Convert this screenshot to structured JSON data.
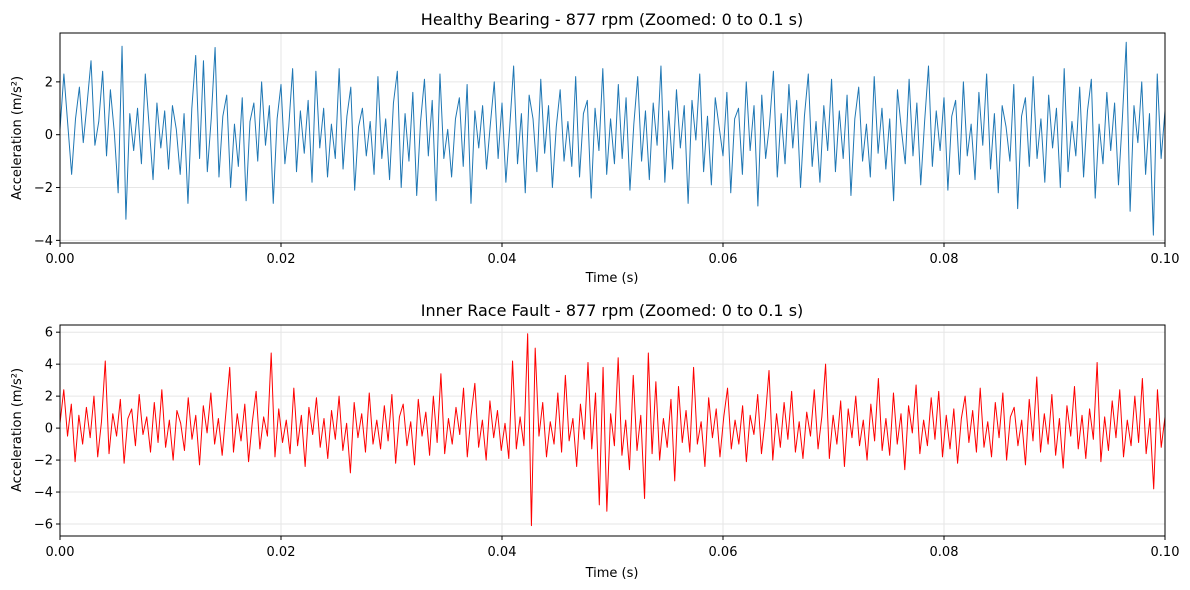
{
  "chart_data": [
    {
      "type": "line",
      "title": "Healthy Bearing - 877 rpm (Zoomed: 0 to 0.1 s)",
      "xlabel": "Time (s)",
      "ylabel": "Acceleration (m/s²)",
      "xlim": [
        0,
        0.1
      ],
      "ylim": [
        -4.1,
        3.85
      ],
      "xticks": [
        0,
        0.02,
        0.04,
        0.06,
        0.08,
        0.1
      ],
      "xtick_labels": [
        "0.00",
        "0.02",
        "0.04",
        "0.06",
        "0.08",
        "0.10"
      ],
      "yticks": [
        -4,
        -2,
        0,
        2
      ],
      "ytick_labels": [
        "−4",
        "−2",
        "0",
        "2"
      ],
      "grid": true,
      "series": [
        {
          "name": "Healthy Bearing",
          "color": "#1f77b4",
          "x_start": 0,
          "x_end": 0.1,
          "sample_count": 1200,
          "values": [
            0.2,
            2.3,
            0.4,
            -1.5,
            0.6,
            1.8,
            -0.3,
            1.2,
            2.8,
            -0.4,
            0.5,
            2.4,
            -0.8,
            1.7,
            0.1,
            -2.2,
            3.35,
            -3.2,
            0.8,
            -0.6,
            1.0,
            -1.1,
            2.3,
            0.3,
            -1.7,
            1.2,
            -0.5,
            0.9,
            -1.3,
            1.1,
            0.2,
            -1.5,
            0.8,
            -2.6,
            1.0,
            3.0,
            -0.9,
            2.8,
            -1.4,
            0.6,
            3.3,
            -1.6,
            0.7,
            1.5,
            -2.0,
            0.4,
            -1.2,
            1.4,
            -2.5,
            0.5,
            1.2,
            -1.0,
            2.0,
            -0.4,
            1.1,
            -2.6,
            0.6,
            1.9,
            -1.1,
            0.3,
            2.5,
            -1.4,
            0.9,
            -0.7,
            1.3,
            -1.8,
            2.4,
            -0.5,
            1.0,
            -1.6,
            0.4,
            -0.9,
            2.5,
            -1.3,
            0.7,
            1.8,
            -2.1,
            0.3,
            1.0,
            -0.8,
            0.5,
            -1.5,
            2.2,
            -0.9,
            0.6,
            -1.7,
            1.2,
            2.4,
            -2.0,
            0.8,
            -1.0,
            1.6,
            -2.3,
            0.5,
            2.1,
            -0.8,
            1.3,
            -2.5,
            2.3,
            -0.9,
            0.2,
            -1.6,
            0.6,
            1.4,
            -1.2,
            1.9,
            -2.6,
            0.9,
            -0.5,
            1.1,
            -1.3,
            0.4,
            2.0,
            -0.9,
            1.2,
            -1.8,
            0.3,
            2.6,
            -1.1,
            0.8,
            -2.2,
            1.5,
            0.6,
            -1.4,
            2.1,
            -0.7,
            1.1,
            -2.0,
            0.3,
            1.7,
            -1.0,
            0.5,
            -1.2,
            2.2,
            -1.6,
            0.8,
            1.3,
            -2.4,
            1.0,
            -0.6,
            2.5,
            -1.5,
            0.6,
            -1.1,
            1.9,
            -0.9,
            1.4,
            -2.1,
            0.4,
            2.2,
            -1.0,
            0.9,
            -1.7,
            1.2,
            -0.4,
            2.6,
            -1.8,
            0.9,
            -1.3,
            1.7,
            -0.5,
            1.1,
            -2.6,
            1.3,
            -0.2,
            2.3,
            -1.4,
            0.7,
            -1.9,
            1.4,
            0.3,
            -0.8,
            1.6,
            -2.2,
            0.6,
            1.0,
            -1.5,
            2.0,
            -0.6,
            1.1,
            -2.7,
            1.5,
            -0.9,
            0.4,
            2.4,
            -1.6,
            0.8,
            -1.1,
            1.9,
            -0.5,
            1.3,
            -2.0,
            0.7,
            2.3,
            -1.2,
            0.5,
            -1.8,
            1.1,
            -0.6,
            2.1,
            -1.4,
            0.9,
            -0.9,
            1.5,
            -2.3,
            0.6,
            1.8,
            -1.0,
            0.4,
            -1.6,
            2.2,
            -0.7,
            1.0,
            -1.3,
            0.6,
            -2.5,
            1.7,
            0.2,
            -1.1,
            2.1,
            -0.8,
            1.2,
            -1.9,
            0.5,
            2.6,
            -1.2,
            0.9,
            -0.6,
            1.4,
            -2.1,
            0.7,
            1.3,
            -1.5,
            2.0,
            -0.8,
            0.4,
            -1.7,
            1.6,
            -0.4,
            2.3,
            -1.3,
            0.8,
            -2.2,
            1.1,
            0.3,
            -1.0,
            1.9,
            -2.8,
            0.7,
            1.4,
            -1.2,
            2.2,
            -0.9,
            0.6,
            -1.8,
            1.5,
            -0.5,
            1.0,
            -2.0,
            2.5,
            -1.4,
            0.5,
            -0.8,
            1.8,
            -1.6,
            0.9,
            2.1,
            -2.4,
            0.4,
            -1.1,
            1.6,
            -0.6,
            1.2,
            -1.9,
            0.6,
            3.5,
            -2.9,
            1.1,
            -0.3,
            2.0,
            -1.5,
            0.8,
            -3.8,
            2.3,
            -0.9,
            0.9
          ]
        }
      ]
    },
    {
      "type": "line",
      "title": "Inner Race Fault - 877 rpm (Zoomed: 0 to 0.1 s)",
      "xlabel": "Time (s)",
      "ylabel": "Acceleration (m/s²)",
      "xlim": [
        0,
        0.1
      ],
      "ylim": [
        -6.75,
        6.45
      ],
      "xticks": [
        0,
        0.02,
        0.04,
        0.06,
        0.08,
        0.1
      ],
      "xtick_labels": [
        "0.00",
        "0.02",
        "0.04",
        "0.06",
        "0.08",
        "0.10"
      ],
      "yticks": [
        -6,
        -4,
        -2,
        0,
        2,
        4,
        6
      ],
      "ytick_labels": [
        "−6",
        "−4",
        "−2",
        "0",
        "2",
        "4",
        "6"
      ],
      "grid": true,
      "series": [
        {
          "name": "Inner Race Fault",
          "color": "#ff0000",
          "x_start": 0,
          "x_end": 0.1,
          "sample_count": 1200,
          "values": [
            0.3,
            2.4,
            -0.5,
            1.5,
            -2.1,
            0.8,
            -1.0,
            1.3,
            -0.6,
            2.0,
            -1.8,
            0.4,
            4.2,
            -1.6,
            0.9,
            -0.5,
            1.8,
            -2.2,
            0.6,
            1.2,
            -1.1,
            2.1,
            -0.4,
            0.7,
            -1.5,
            1.6,
            -0.9,
            2.4,
            -1.2,
            0.5,
            -2.0,
            1.1,
            0.3,
            -1.4,
            1.9,
            -0.7,
            0.8,
            -2.3,
            1.4,
            -0.3,
            2.2,
            -1.0,
            0.6,
            -1.7,
            1.0,
            3.8,
            -1.5,
            0.9,
            -0.8,
            1.5,
            -2.1,
            0.4,
            2.3,
            -1.3,
            0.7,
            -0.5,
            4.7,
            -1.8,
            1.2,
            -0.9,
            0.5,
            -1.6,
            2.5,
            -1.1,
            0.8,
            -2.4,
            1.3,
            -0.4,
            1.9,
            -1.2,
            0.6,
            -1.9,
            1.1,
            -0.7,
            2.0,
            -1.4,
            0.3,
            -2.8,
            1.6,
            -0.6,
            0.9,
            -1.5,
            2.2,
            -1.0,
            0.5,
            -1.3,
            1.4,
            -0.8,
            2.1,
            -2.2,
            0.7,
            1.5,
            -1.1,
            0.4,
            -2.3,
            1.8,
            -0.5,
            1.0,
            -1.7,
            2.0,
            -0.9,
            3.4,
            -1.6,
            0.6,
            -1.0,
            1.3,
            -0.4,
            2.5,
            -1.8,
            0.8,
            2.8,
            -1.2,
            0.5,
            -2.0,
            1.7,
            -0.6,
            1.1,
            -1.4,
            0.3,
            -1.9,
            4.2,
            -1.3,
            0.7,
            -1.1,
            5.9,
            -6.1,
            5.0,
            -0.5,
            1.6,
            -1.8,
            0.4,
            -1.0,
            2.2,
            -1.5,
            3.3,
            -0.8,
            0.6,
            -2.4,
            1.5,
            -0.7,
            4.1,
            -1.3,
            2.2,
            -4.8,
            3.8,
            -5.2,
            0.9,
            -1.1,
            4.4,
            -1.7,
            0.5,
            -2.6,
            3.3,
            -1.4,
            0.8,
            -4.4,
            4.7,
            -1.6,
            2.9,
            -2.0,
            0.6,
            -1.2,
            1.8,
            -3.3,
            2.6,
            -0.9,
            1.1,
            -1.5,
            3.8,
            -1.0,
            0.4,
            -2.4,
            1.9,
            -0.6,
            1.2,
            -1.8,
            0.7,
            2.5,
            -1.3,
            0.5,
            -1.0,
            1.4,
            -2.1,
            0.8,
            -0.4,
            2.1,
            -1.6,
            0.6,
            3.6,
            -2.0,
            0.9,
            -1.2,
            1.6,
            -0.7,
            2.3,
            -1.5,
            0.4,
            -1.9,
            1.0,
            -0.5,
            2.4,
            -1.3,
            0.7,
            4.0,
            -1.9,
            0.8,
            -1.0,
            1.7,
            -2.4,
            1.2,
            -0.6,
            2.0,
            -1.1,
            0.5,
            -2.0,
            1.5,
            -0.8,
            3.1,
            -1.4,
            0.6,
            -1.7,
            2.2,
            -1.0,
            0.9,
            -2.6,
            1.4,
            -0.3,
            2.7,
            -1.6,
            0.5,
            -1.1,
            1.9,
            -0.7,
            2.3,
            -1.8,
            0.8,
            -1.3,
            1.2,
            -2.2,
            0.6,
            2.0,
            -0.9,
            1.1,
            -1.5,
            2.5,
            -1.2,
            0.4,
            -1.8,
            1.6,
            -0.6,
            2.2,
            -2.0,
            0.7,
            1.3,
            -1.1,
            0.5,
            -2.3,
            1.8,
            -0.8,
            3.2,
            -1.5,
            0.9,
            -1.0,
            2.1,
            -1.7,
            0.6,
            -2.5,
            1.4,
            -0.5,
            2.6,
            -1.3,
            0.8,
            -1.9,
            1.2,
            -0.7,
            4.1,
            -2.1,
            0.7,
            -1.4,
            1.7,
            -0.6,
            2.4,
            -1.8,
            0.5,
            -1.1,
            2.0,
            -0.9,
            3.1,
            -1.6,
            0.6,
            -3.8,
            2.4,
            -1.2,
            0.7
          ]
        }
      ]
    }
  ]
}
